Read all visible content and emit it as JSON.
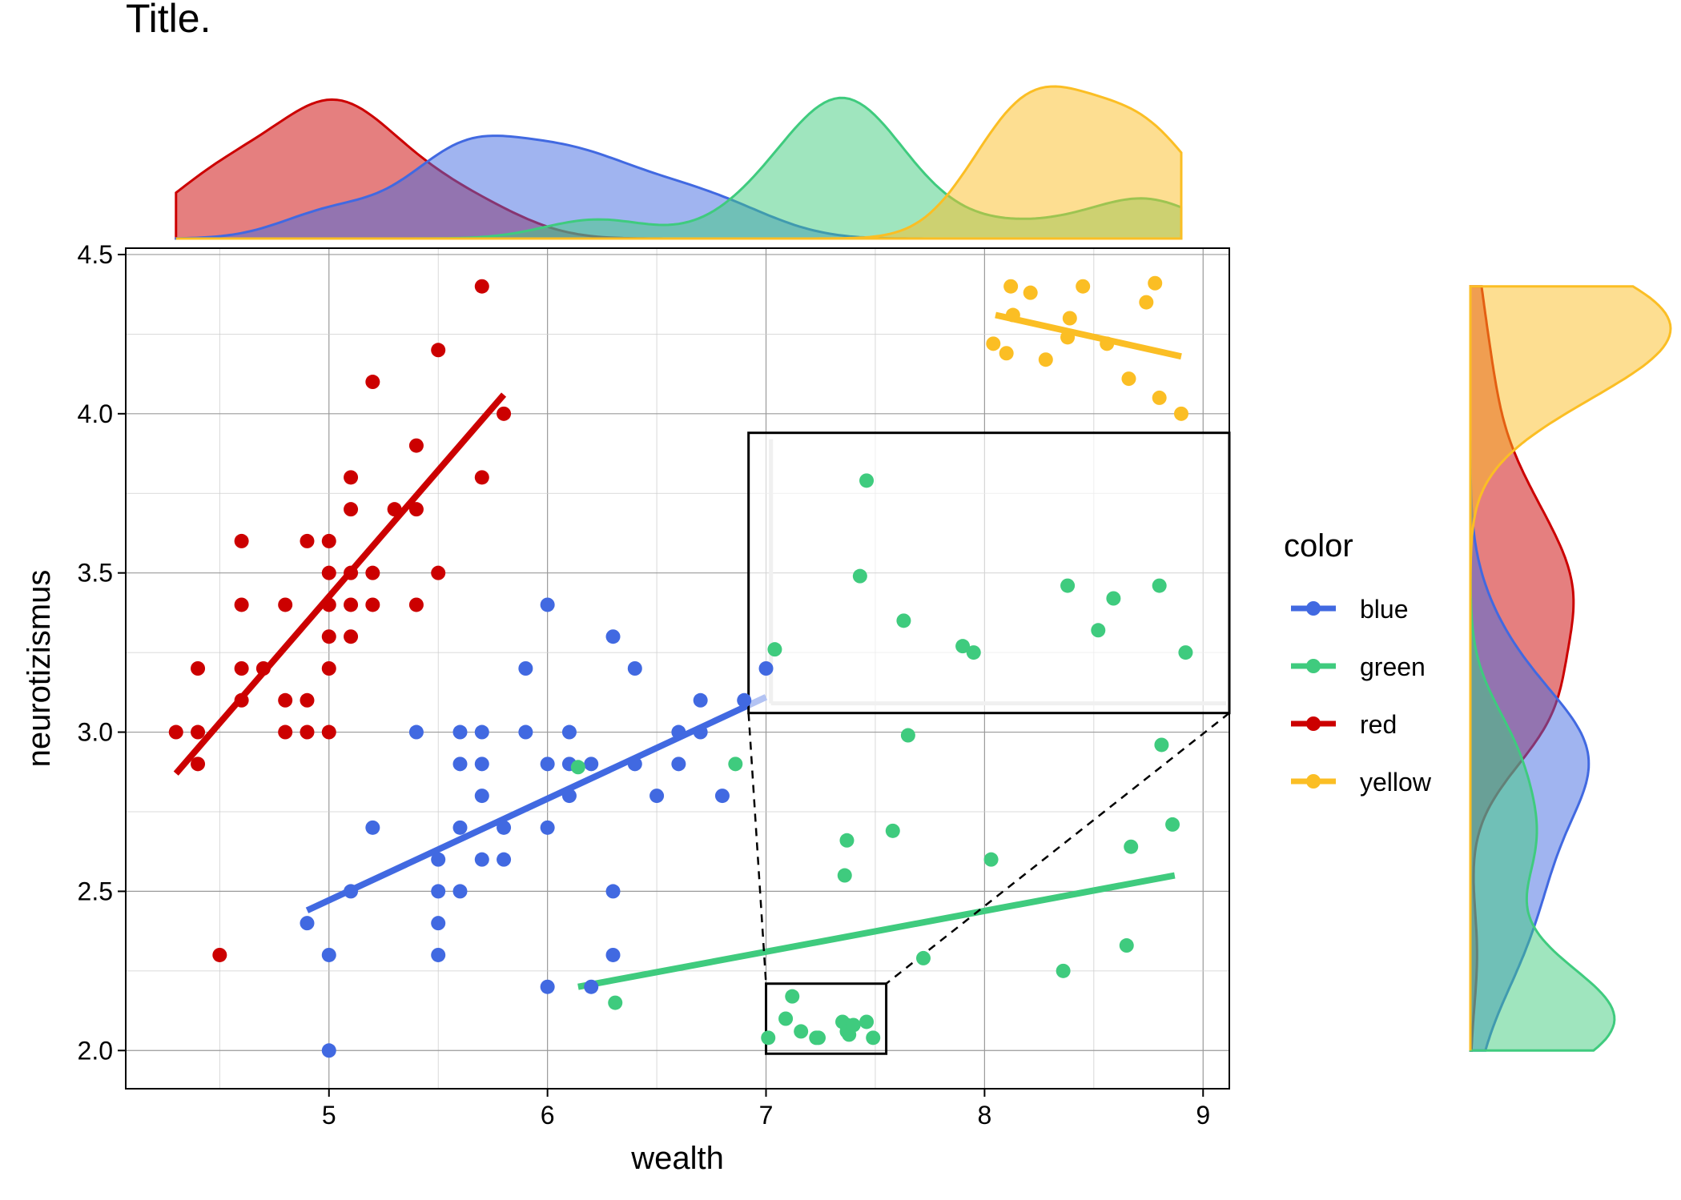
{
  "chart_data": {
    "type": "scatter",
    "title": "Title.",
    "xlabel": "wealth",
    "ylabel": "neurotizismus",
    "x_ticks": [
      5,
      6,
      7,
      8,
      9
    ],
    "y_ticks": [
      "2.0",
      "2.5",
      "3.0",
      "3.5",
      "4.0",
      "4.5"
    ],
    "xlim": [
      4.07,
      9.12
    ],
    "ylim": [
      1.88,
      4.52
    ],
    "grid": true,
    "legend": {
      "title": "color",
      "placement": "right",
      "entries": [
        "blue",
        "green",
        "red",
        "yellow"
      ]
    },
    "colors": {
      "blue": "#4169E1",
      "green": "#3FCB7E",
      "red": "#CC0000",
      "yellow": "#FBBE24"
    },
    "marginal_densities": [
      "top (wealth)",
      "right (neurotizismus)"
    ],
    "zoom_inset": {
      "source_region": {
        "x": [
          7.0,
          7.55
        ],
        "y": [
          1.99,
          2.21
        ]
      },
      "inset_region": {
        "x": [
          6.92,
          9.12
        ],
        "y": [
          3.06,
          3.94
        ]
      }
    },
    "series": [
      {
        "name": "red",
        "trend": [
          [
            4.3,
            2.87
          ],
          [
            5.8,
            4.06
          ]
        ],
        "points": [
          [
            4.3,
            3.0
          ],
          [
            4.4,
            3.0
          ],
          [
            4.4,
            2.9
          ],
          [
            4.4,
            3.2
          ],
          [
            4.5,
            2.3
          ],
          [
            4.6,
            3.1
          ],
          [
            4.6,
            3.2
          ],
          [
            4.6,
            3.4
          ],
          [
            4.6,
            3.6
          ],
          [
            4.7,
            3.2
          ],
          [
            4.8,
            3.0
          ],
          [
            4.8,
            3.1
          ],
          [
            4.8,
            3.4
          ],
          [
            4.9,
            3.0
          ],
          [
            4.9,
            3.1
          ],
          [
            4.9,
            3.6
          ],
          [
            5.0,
            3.0
          ],
          [
            5.0,
            3.2
          ],
          [
            5.0,
            3.3
          ],
          [
            5.0,
            3.4
          ],
          [
            5.0,
            3.5
          ],
          [
            5.0,
            3.6
          ],
          [
            5.1,
            3.3
          ],
          [
            5.1,
            3.4
          ],
          [
            5.1,
            3.5
          ],
          [
            5.1,
            3.7
          ],
          [
            5.1,
            3.8
          ],
          [
            5.2,
            3.4
          ],
          [
            5.2,
            3.5
          ],
          [
            5.2,
            4.1
          ],
          [
            5.3,
            3.7
          ],
          [
            5.4,
            3.4
          ],
          [
            5.4,
            3.7
          ],
          [
            5.4,
            3.9
          ],
          [
            5.5,
            3.5
          ],
          [
            5.5,
            4.2
          ],
          [
            5.7,
            3.8
          ],
          [
            5.7,
            4.4
          ],
          [
            5.8,
            4.0
          ]
        ]
      },
      {
        "name": "blue",
        "trend": [
          [
            4.9,
            2.44
          ],
          [
            7.0,
            3.11
          ]
        ],
        "points": [
          [
            4.9,
            2.4
          ],
          [
            5.0,
            2.0
          ],
          [
            5.0,
            2.3
          ],
          [
            5.1,
            2.5
          ],
          [
            5.2,
            2.7
          ],
          [
            5.4,
            3.0
          ],
          [
            5.5,
            2.3
          ],
          [
            5.5,
            2.4
          ],
          [
            5.5,
            2.5
          ],
          [
            5.5,
            2.6
          ],
          [
            5.6,
            2.5
          ],
          [
            5.6,
            2.7
          ],
          [
            5.6,
            2.9
          ],
          [
            5.6,
            3.0
          ],
          [
            5.7,
            2.6
          ],
          [
            5.7,
            2.8
          ],
          [
            5.7,
            2.9
          ],
          [
            5.7,
            3.0
          ],
          [
            5.8,
            2.6
          ],
          [
            5.8,
            2.7
          ],
          [
            5.9,
            3.0
          ],
          [
            5.9,
            3.2
          ],
          [
            6.0,
            2.2
          ],
          [
            6.0,
            2.7
          ],
          [
            6.0,
            2.9
          ],
          [
            6.0,
            3.4
          ],
          [
            6.1,
            2.8
          ],
          [
            6.1,
            2.9
          ],
          [
            6.1,
            3.0
          ],
          [
            6.2,
            2.2
          ],
          [
            6.2,
            2.9
          ],
          [
            6.3,
            2.3
          ],
          [
            6.3,
            2.5
          ],
          [
            6.3,
            3.3
          ],
          [
            6.4,
            2.9
          ],
          [
            6.4,
            3.2
          ],
          [
            6.5,
            2.8
          ],
          [
            6.6,
            2.9
          ],
          [
            6.6,
            3.0
          ],
          [
            6.7,
            3.0
          ],
          [
            6.7,
            3.1
          ],
          [
            6.8,
            2.8
          ],
          [
            6.9,
            3.1
          ],
          [
            7.0,
            3.2
          ]
        ]
      },
      {
        "name": "green",
        "trend": [
          [
            6.14,
            2.2
          ],
          [
            8.87,
            2.55
          ]
        ],
        "points": [
          [
            6.14,
            2.89
          ],
          [
            6.31,
            2.15
          ],
          [
            6.86,
            2.9
          ],
          [
            7.01,
            2.04
          ],
          [
            7.09,
            2.1
          ],
          [
            7.12,
            2.17
          ],
          [
            7.16,
            2.06
          ],
          [
            7.23,
            2.04
          ],
          [
            7.24,
            2.04
          ],
          [
            7.35,
            2.09
          ],
          [
            7.37,
            2.08
          ],
          [
            7.37,
            2.06
          ],
          [
            7.38,
            2.05
          ],
          [
            7.4,
            2.08
          ],
          [
            7.46,
            2.09
          ],
          [
            7.49,
            2.04
          ],
          [
            7.36,
            2.55
          ],
          [
            7.37,
            2.66
          ],
          [
            7.58,
            2.69
          ],
          [
            7.65,
            2.99
          ],
          [
            7.72,
            2.29
          ],
          [
            8.03,
            2.6
          ],
          [
            8.36,
            2.25
          ],
          [
            8.65,
            2.33
          ],
          [
            8.67,
            2.64
          ],
          [
            8.81,
            2.96
          ],
          [
            8.86,
            2.71
          ]
        ]
      },
      {
        "name": "yellow",
        "trend": [
          [
            8.05,
            4.31
          ],
          [
            8.9,
            4.18
          ]
        ],
        "points": [
          [
            8.04,
            4.22
          ],
          [
            8.1,
            4.19
          ],
          [
            8.12,
            4.4
          ],
          [
            8.13,
            4.31
          ],
          [
            8.21,
            4.38
          ],
          [
            8.28,
            4.17
          ],
          [
            8.38,
            4.24
          ],
          [
            8.39,
            4.3
          ],
          [
            8.45,
            4.4
          ],
          [
            8.56,
            4.22
          ],
          [
            8.66,
            4.11
          ],
          [
            8.74,
            4.35
          ],
          [
            8.78,
            4.41
          ],
          [
            8.8,
            4.05
          ],
          [
            8.9,
            4.0
          ]
        ]
      }
    ],
    "inset_points": [
      [
        7.46,
        3.79
      ],
      [
        7.43,
        3.49
      ],
      [
        7.63,
        3.35
      ],
      [
        7.04,
        3.26
      ],
      [
        7.9,
        3.27
      ],
      [
        7.95,
        3.25
      ],
      [
        8.38,
        3.46
      ],
      [
        8.59,
        3.42
      ],
      [
        8.52,
        3.32
      ],
      [
        8.8,
        3.46
      ],
      [
        8.92,
        3.25
      ]
    ]
  }
}
